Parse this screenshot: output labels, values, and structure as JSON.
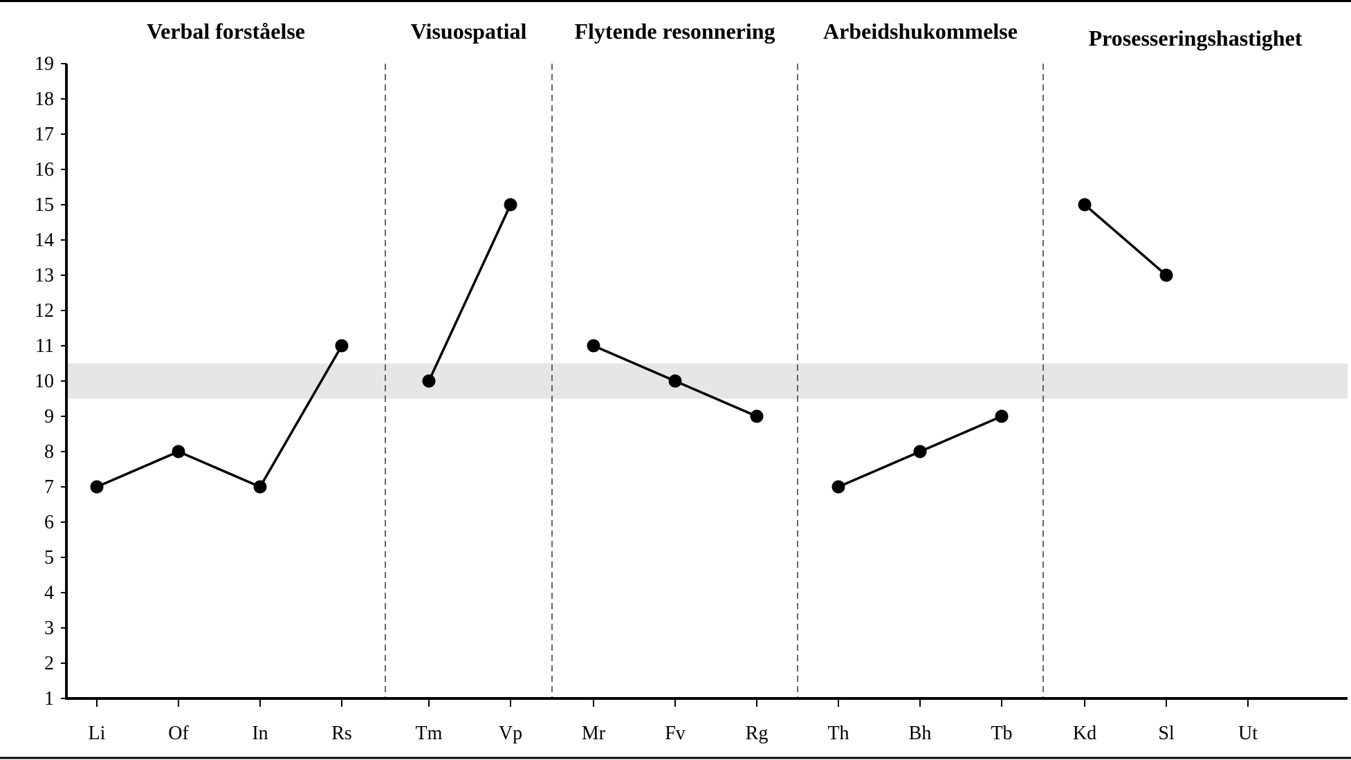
{
  "chart_data": {
    "type": "line",
    "ylim": [
      1,
      19
    ],
    "yticks": [
      "1",
      "2",
      "3",
      "4",
      "5",
      "6",
      "7",
      "8",
      "9",
      "10",
      "11",
      "12",
      "13",
      "14",
      "15",
      "16",
      "17",
      "18",
      "19"
    ],
    "band": [
      9.5,
      10.5
    ],
    "grid": false,
    "groups": [
      {
        "title": "Verbal forståelse",
        "categories": [
          "Li",
          "Of",
          "In",
          "Rs"
        ],
        "values": [
          7,
          8,
          7,
          11
        ]
      },
      {
        "title": "Visuospatial",
        "categories": [
          "Tm",
          "Vp"
        ],
        "values": [
          10,
          15
        ]
      },
      {
        "title": "Flytende resonnering",
        "categories": [
          "Mr",
          "Fv",
          "Rg"
        ],
        "values": [
          11,
          10,
          9
        ]
      },
      {
        "title": "Arbeidshukommelse",
        "categories": [
          "Th",
          "Bh",
          "Tb"
        ],
        "values": [
          7,
          8,
          9
        ]
      },
      {
        "title": "Prosesseringshastighet",
        "categories": [
          "Kd",
          "Sl",
          "Ut"
        ],
        "values": [
          15,
          13,
          null
        ]
      }
    ]
  }
}
